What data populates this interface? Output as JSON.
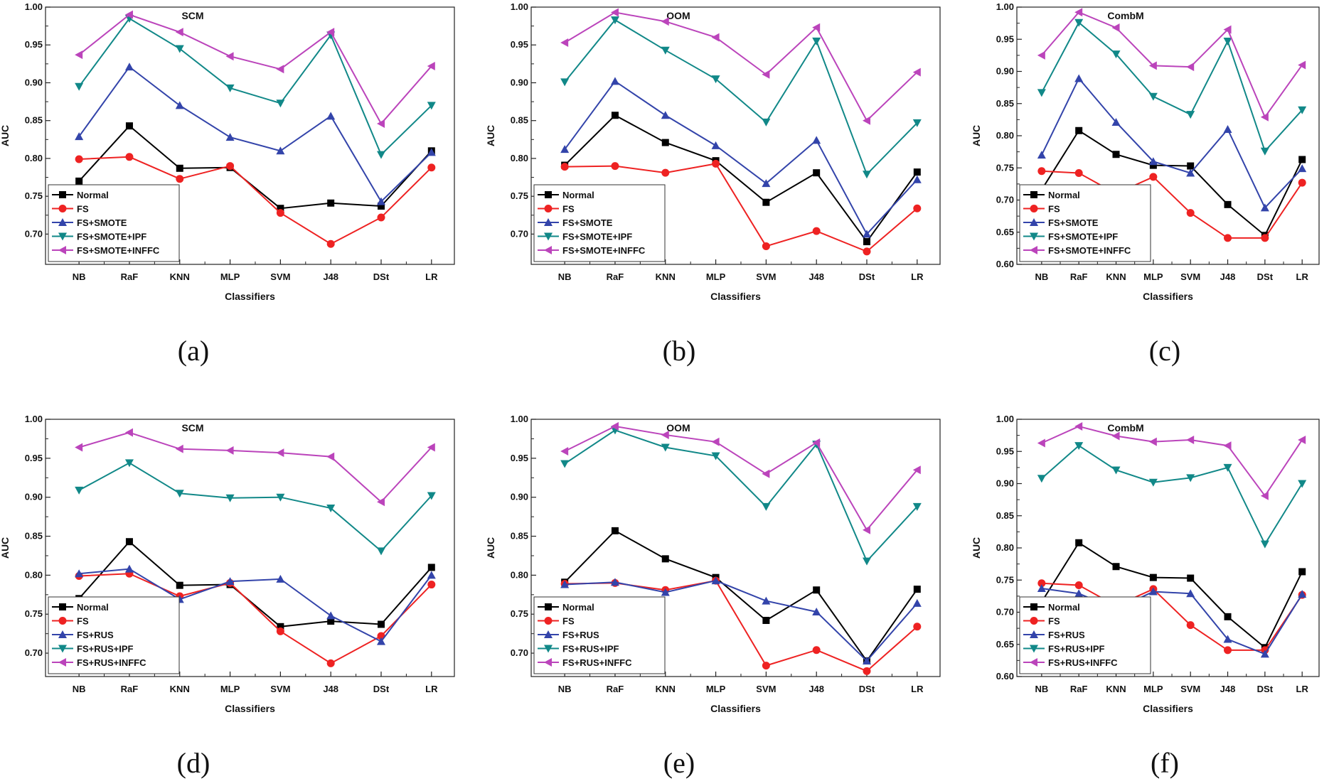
{
  "series_style": [
    {
      "color": "#000000",
      "marker": "square"
    },
    {
      "color": "#ee2222",
      "marker": "circle"
    },
    {
      "color": "#3344aa",
      "marker": "triangle-up"
    },
    {
      "color": "#118888",
      "marker": "triangle-down"
    },
    {
      "color": "#bb44bb",
      "marker": "triangle-left"
    }
  ],
  "chart_data": [
    {
      "type": "line",
      "title": "SCM",
      "caption": "(a)",
      "xlabel": "Classifiers",
      "ylabel": "AUC",
      "categories": [
        "NB",
        "RaF",
        "KNN",
        "MLP",
        "SVM",
        "J48",
        "DSt",
        "LR"
      ],
      "ylim": [
        0.66,
        1.0
      ],
      "yticks": [
        "0.70",
        "0.75",
        "0.80",
        "0.85",
        "0.90",
        "0.95",
        "1.00"
      ],
      "legend_position": "bottom-left",
      "series": [
        {
          "name": "Normal",
          "values": [
            0.77,
            0.843,
            0.787,
            0.788,
            0.734,
            0.741,
            0.737,
            0.81
          ]
        },
        {
          "name": "FS",
          "values": [
            0.799,
            0.802,
            0.773,
            0.79,
            0.728,
            0.687,
            0.722,
            0.788
          ]
        },
        {
          "name": "FS+SMOTE",
          "values": [
            0.829,
            0.921,
            0.87,
            0.828,
            0.81,
            0.856,
            0.743,
            0.808
          ]
        },
        {
          "name": "FS+SMOTE+IPF",
          "values": [
            0.895,
            0.985,
            0.945,
            0.893,
            0.873,
            0.963,
            0.805,
            0.87
          ]
        },
        {
          "name": "FS+SMOTE+INFFC",
          "values": [
            0.937,
            0.99,
            0.967,
            0.935,
            0.918,
            0.967,
            0.846,
            0.922
          ]
        }
      ]
    },
    {
      "type": "line",
      "title": "OOM",
      "caption": "(b)",
      "xlabel": "Classifiers",
      "ylabel": "AUC",
      "categories": [
        "NB",
        "RaF",
        "KNN",
        "MLP",
        "SVM",
        "J48",
        "DSt",
        "LR"
      ],
      "ylim": [
        0.66,
        1.0
      ],
      "yticks": [
        "0.70",
        "0.75",
        "0.80",
        "0.85",
        "0.90",
        "0.95",
        "1.00"
      ],
      "legend_position": "bottom-left",
      "series": [
        {
          "name": "Normal",
          "values": [
            0.791,
            0.857,
            0.821,
            0.797,
            0.742,
            0.781,
            0.69,
            0.782
          ]
        },
        {
          "name": "FS",
          "values": [
            0.789,
            0.79,
            0.781,
            0.793,
            0.684,
            0.704,
            0.677,
            0.734
          ]
        },
        {
          "name": "FS+SMOTE",
          "values": [
            0.812,
            0.902,
            0.857,
            0.817,
            0.767,
            0.824,
            0.7,
            0.772
          ]
        },
        {
          "name": "FS+SMOTE+IPF",
          "values": [
            0.901,
            0.983,
            0.943,
            0.905,
            0.848,
            0.955,
            0.779,
            0.847
          ]
        },
        {
          "name": "FS+SMOTE+INFFC",
          "values": [
            0.953,
            0.993,
            0.981,
            0.96,
            0.911,
            0.973,
            0.85,
            0.914
          ]
        }
      ]
    },
    {
      "type": "line",
      "title": "CombM",
      "caption": "(c)",
      "xlabel": "Classifiers",
      "ylabel": "AUC",
      "categories": [
        "NB",
        "RaF",
        "KNN",
        "MLP",
        "SVM",
        "J48",
        "DSt",
        "LR"
      ],
      "ylim": [
        0.6,
        1.0
      ],
      "yticks": [
        "0.60",
        "0.65",
        "0.70",
        "0.75",
        "0.80",
        "0.85",
        "0.90",
        "0.95",
        "1.00"
      ],
      "legend_position": "bottom-left",
      "series": [
        {
          "name": "Normal",
          "values": [
            0.716,
            0.808,
            0.771,
            0.754,
            0.753,
            0.693,
            0.645,
            0.763
          ]
        },
        {
          "name": "FS",
          "values": [
            0.745,
            0.742,
            0.71,
            0.736,
            0.68,
            0.641,
            0.641,
            0.727
          ]
        },
        {
          "name": "FS+SMOTE",
          "values": [
            0.77,
            0.889,
            0.821,
            0.76,
            0.742,
            0.81,
            0.688,
            0.749
          ]
        },
        {
          "name": "FS+SMOTE+IPF",
          "values": [
            0.867,
            0.976,
            0.927,
            0.861,
            0.833,
            0.947,
            0.776,
            0.84
          ]
        },
        {
          "name": "FS+SMOTE+INFFC",
          "values": [
            0.925,
            0.992,
            0.968,
            0.909,
            0.907,
            0.965,
            0.829,
            0.91
          ]
        }
      ]
    },
    {
      "type": "line",
      "title": "SCM",
      "caption": "(d)",
      "xlabel": "Classifiers",
      "ylabel": "AUC",
      "categories": [
        "NB",
        "RaF",
        "KNN",
        "MLP",
        "SVM",
        "J48",
        "DSt",
        "LR"
      ],
      "ylim": [
        0.67,
        1.0
      ],
      "yticks": [
        "0.70",
        "0.75",
        "0.80",
        "0.85",
        "0.90",
        "0.95",
        "1.00"
      ],
      "legend_position": "bottom-left",
      "series": [
        {
          "name": "Normal",
          "values": [
            0.77,
            0.843,
            0.787,
            0.788,
            0.734,
            0.741,
            0.737,
            0.81
          ]
        },
        {
          "name": "FS",
          "values": [
            0.799,
            0.802,
            0.773,
            0.79,
            0.728,
            0.687,
            0.722,
            0.788
          ]
        },
        {
          "name": "FS+RUS",
          "values": [
            0.802,
            0.808,
            0.769,
            0.792,
            0.795,
            0.748,
            0.715,
            0.8
          ]
        },
        {
          "name": "FS+RUS+IPF",
          "values": [
            0.909,
            0.944,
            0.905,
            0.899,
            0.9,
            0.886,
            0.831,
            0.902
          ]
        },
        {
          "name": "FS+RUS+INFFC",
          "values": [
            0.964,
            0.983,
            0.962,
            0.96,
            0.957,
            0.952,
            0.894,
            0.964
          ]
        }
      ]
    },
    {
      "type": "line",
      "title": "OOM",
      "caption": "(e)",
      "xlabel": "Classifiers",
      "ylabel": "AUC",
      "categories": [
        "NB",
        "RaF",
        "KNN",
        "MLP",
        "SVM",
        "J48",
        "DSt",
        "LR"
      ],
      "ylim": [
        0.67,
        1.0
      ],
      "yticks": [
        "0.70",
        "0.75",
        "0.80",
        "0.85",
        "0.90",
        "0.95",
        "1.00"
      ],
      "legend_position": "bottom-left",
      "series": [
        {
          "name": "Normal",
          "values": [
            0.791,
            0.857,
            0.821,
            0.797,
            0.742,
            0.781,
            0.69,
            0.782
          ]
        },
        {
          "name": "FS",
          "values": [
            0.789,
            0.79,
            0.781,
            0.793,
            0.684,
            0.704,
            0.677,
            0.734
          ]
        },
        {
          "name": "FS+RUS",
          "values": [
            0.788,
            0.791,
            0.778,
            0.793,
            0.767,
            0.753,
            0.69,
            0.764
          ]
        },
        {
          "name": "FS+RUS+IPF",
          "values": [
            0.943,
            0.986,
            0.964,
            0.953,
            0.888,
            0.968,
            0.818,
            0.888
          ]
        },
        {
          "name": "FS+RUS+INFFC",
          "values": [
            0.959,
            0.991,
            0.98,
            0.971,
            0.93,
            0.97,
            0.858,
            0.935
          ]
        }
      ]
    },
    {
      "type": "line",
      "title": "CombM",
      "caption": "(f)",
      "xlabel": "Classifiers",
      "ylabel": "AUC",
      "categories": [
        "NB",
        "RaF",
        "KNN",
        "MLP",
        "SVM",
        "J48",
        "DSt",
        "LR"
      ],
      "ylim": [
        0.6,
        1.0
      ],
      "yticks": [
        "0.60",
        "0.65",
        "0.70",
        "0.75",
        "0.80",
        "0.85",
        "0.90",
        "0.95",
        "1.00"
      ],
      "legend_position": "bottom-left",
      "series": [
        {
          "name": "Normal",
          "values": [
            0.716,
            0.808,
            0.771,
            0.754,
            0.753,
            0.693,
            0.645,
            0.763
          ]
        },
        {
          "name": "FS",
          "values": [
            0.745,
            0.742,
            0.71,
            0.736,
            0.68,
            0.641,
            0.641,
            0.727
          ]
        },
        {
          "name": "FS+RUS",
          "values": [
            0.737,
            0.729,
            0.705,
            0.732,
            0.729,
            0.658,
            0.635,
            0.728
          ]
        },
        {
          "name": "FS+RUS+IPF",
          "values": [
            0.908,
            0.959,
            0.921,
            0.902,
            0.909,
            0.925,
            0.806,
            0.9
          ]
        },
        {
          "name": "FS+RUS+INFFC",
          "values": [
            0.963,
            0.989,
            0.974,
            0.965,
            0.968,
            0.959,
            0.881,
            0.968
          ]
        }
      ]
    }
  ]
}
